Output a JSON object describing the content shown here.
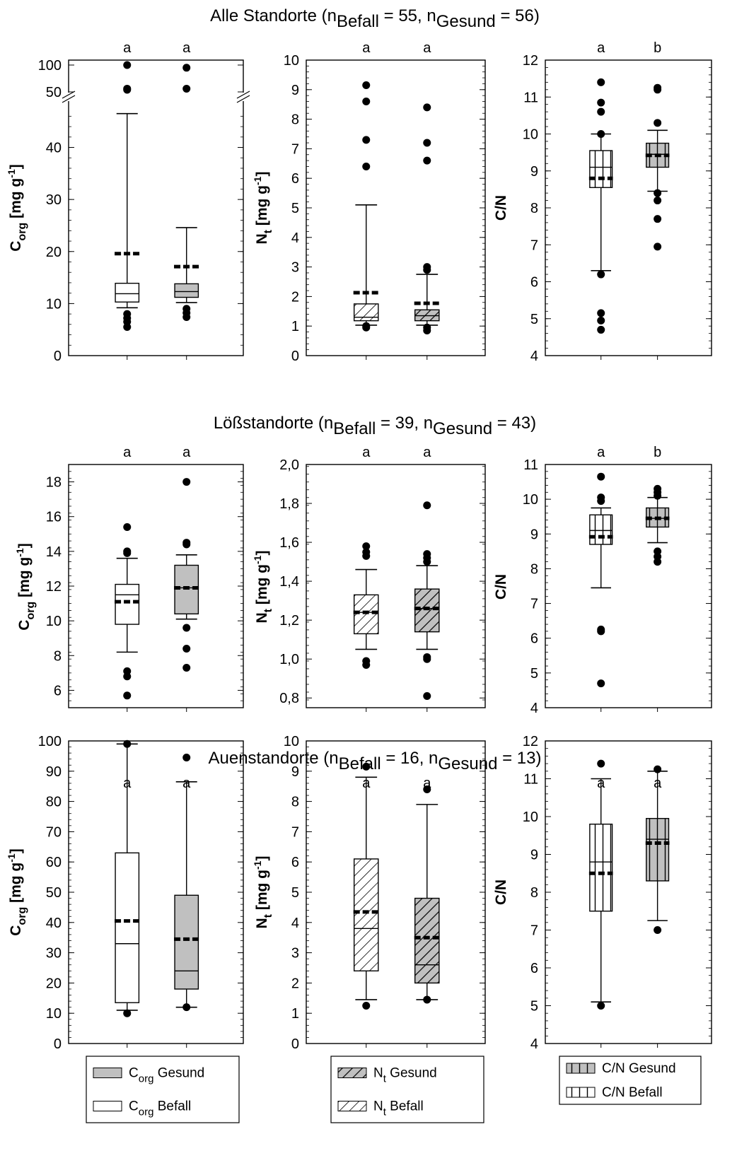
{
  "chart_data": [
    {
      "type": "box",
      "group": "Alle Standorte",
      "row_title": {
        "main": "Alle Standorte (n",
        "sub1": "Befall",
        "mid": " = 55, n",
        "sub2": "Gesund",
        "end": " = 56)"
      },
      "ylabel": {
        "main": "C",
        "sub": "org",
        "unit": " [mg g",
        "sup": "-1",
        "close": "]"
      },
      "ylim": [
        0,
        100
      ],
      "axis_break": [
        47,
        48
      ],
      "ticks": [
        "0",
        "10",
        "20",
        "30",
        "40",
        "50",
        "100"
      ],
      "tick_values": [
        0,
        10,
        20,
        30,
        40,
        50,
        100
      ],
      "fill_pattern": "solid-gray",
      "letters": [
        "a",
        "a"
      ],
      "boxes": [
        {
          "name": "Befall",
          "q1": 10.3,
          "median": 11.9,
          "q3": 13.9,
          "whisker_low": 9.2,
          "whisker_high": 46.5,
          "mean": 19.6,
          "outliers": [
            5.5,
            6.5,
            7.2,
            8.0,
            54,
            56,
            100
          ]
        },
        {
          "name": "Gesund",
          "q1": 11.2,
          "median": 12.3,
          "q3": 13.8,
          "whisker_low": 10.2,
          "whisker_high": 24.6,
          "mean": 17.1,
          "outliers": [
            7.4,
            8.2,
            9.0,
            56,
            95
          ]
        }
      ]
    },
    {
      "type": "box",
      "group": "Alle Standorte",
      "ylabel": {
        "main": "N",
        "sub": "t",
        "unit": " [mg g",
        "sup": "-1",
        "close": "]"
      },
      "ylim": [
        0,
        10
      ],
      "ticks": [
        "0",
        "1",
        "2",
        "3",
        "4",
        "5",
        "6",
        "7",
        "8",
        "9",
        "10"
      ],
      "tick_values": [
        0,
        1,
        2,
        3,
        4,
        5,
        6,
        7,
        8,
        9,
        10
      ],
      "fill_pattern": "diagonal",
      "letters": [
        "a",
        "a"
      ],
      "boxes": [
        {
          "name": "Befall",
          "q1": 1.18,
          "median": 1.3,
          "q3": 1.75,
          "whisker_low": 1.03,
          "whisker_high": 5.1,
          "mean": 2.13,
          "outliers": [
            0.95,
            1.0,
            6.4,
            7.3,
            8.6,
            9.15
          ]
        },
        {
          "name": "Gesund",
          "q1": 1.18,
          "median": 1.35,
          "q3": 1.55,
          "whisker_low": 1.03,
          "whisker_high": 2.75,
          "mean": 1.77,
          "outliers": [
            0.85,
            0.95,
            2.9,
            3.0,
            6.6,
            7.2,
            8.4
          ]
        }
      ]
    },
    {
      "type": "box",
      "group": "Alle Standorte",
      "ylabel": {
        "main": "C/N",
        "sub": "",
        "unit": "",
        "sup": "",
        "close": ""
      },
      "ylim": [
        4,
        12
      ],
      "ticks": [
        "4",
        "5",
        "6",
        "7",
        "8",
        "9",
        "10",
        "11",
        "12"
      ],
      "tick_values": [
        4,
        5,
        6,
        7,
        8,
        9,
        10,
        11,
        12
      ],
      "fill_pattern": "vertical",
      "letters": [
        "a",
        "b"
      ],
      "boxes": [
        {
          "name": "Befall",
          "q1": 8.55,
          "median": 9.1,
          "q3": 9.55,
          "whisker_low": 6.3,
          "whisker_high": 10.0,
          "mean": 8.8,
          "outliers": [
            4.7,
            4.95,
            5.15,
            6.2,
            10.0,
            10.6,
            10.85,
            11.4
          ]
        },
        {
          "name": "Gesund",
          "q1": 9.1,
          "median": 9.45,
          "q3": 9.75,
          "whisker_low": 8.45,
          "whisker_high": 10.1,
          "mean": 9.42,
          "outliers": [
            6.95,
            7.7,
            8.2,
            8.4,
            10.3,
            11.2,
            11.25
          ]
        }
      ]
    },
    {
      "type": "box",
      "group": "Lößstandorte",
      "row_title": {
        "main": "Lößstandorte (n",
        "sub1": "Befall",
        "mid": " = 39, n",
        "sub2": "Gesund",
        "end": " = 43)"
      },
      "ylabel": {
        "main": "C",
        "sub": "org",
        "unit": " [mg g",
        "sup": "-1",
        "close": "]"
      },
      "ylim": [
        5,
        19
      ],
      "ticks": [
        "6",
        "8",
        "10",
        "12",
        "14",
        "16",
        "18"
      ],
      "tick_values": [
        6,
        8,
        10,
        12,
        14,
        16,
        18
      ],
      "fill_pattern": "solid-gray",
      "letters": [
        "a",
        "a"
      ],
      "boxes": [
        {
          "name": "Befall",
          "q1": 9.8,
          "median": 11.5,
          "q3": 12.1,
          "whisker_low": 8.2,
          "whisker_high": 13.6,
          "mean": 11.1,
          "outliers": [
            5.7,
            6.8,
            7.1,
            13.9,
            14.0,
            15.4
          ]
        },
        {
          "name": "Gesund",
          "q1": 10.4,
          "median": 11.9,
          "q3": 13.2,
          "whisker_low": 10.1,
          "whisker_high": 13.8,
          "mean": 11.9,
          "outliers": [
            7.3,
            8.4,
            9.6,
            14.4,
            14.5,
            18.0
          ]
        }
      ]
    },
    {
      "type": "box",
      "group": "Lößstandorte",
      "ylabel": {
        "main": "N",
        "sub": "t",
        "unit": " [mg g",
        "sup": "-1",
        "close": "]"
      },
      "ylim": [
        0.75,
        2.0
      ],
      "ticks": [
        "0,8",
        "1,0",
        "1,2",
        "1,4",
        "1,6",
        "1,8",
        "2,0"
      ],
      "tick_values": [
        0.8,
        1.0,
        1.2,
        1.4,
        1.6,
        1.8,
        2.0
      ],
      "fill_pattern": "diagonal",
      "letters": [
        "a",
        "a"
      ],
      "boxes": [
        {
          "name": "Befall",
          "q1": 1.13,
          "median": 1.24,
          "q3": 1.33,
          "whisker_low": 1.05,
          "whisker_high": 1.46,
          "mean": 1.24,
          "outliers": [
            0.97,
            0.99,
            1.53,
            1.55,
            1.58
          ]
        },
        {
          "name": "Gesund",
          "q1": 1.14,
          "median": 1.26,
          "q3": 1.36,
          "whisker_low": 1.05,
          "whisker_high": 1.48,
          "mean": 1.26,
          "outliers": [
            0.81,
            1.0,
            1.01,
            1.5,
            1.52,
            1.54,
            1.79
          ]
        }
      ]
    },
    {
      "type": "box",
      "group": "Lößstandorte",
      "ylabel": {
        "main": "C/N",
        "sub": "",
        "unit": "",
        "sup": "",
        "close": ""
      },
      "ylim": [
        4,
        11
      ],
      "ticks": [
        "4",
        "5",
        "6",
        "7",
        "8",
        "9",
        "10",
        "11"
      ],
      "tick_values": [
        4,
        5,
        6,
        7,
        8,
        9,
        10,
        11
      ],
      "fill_pattern": "vertical",
      "letters": [
        "a",
        "b"
      ],
      "boxes": [
        {
          "name": "Befall",
          "q1": 8.7,
          "median": 9.1,
          "q3": 9.55,
          "whisker_low": 7.45,
          "whisker_high": 9.75,
          "mean": 8.92,
          "outliers": [
            4.7,
            6.2,
            6.25,
            9.95,
            10.05,
            10.65
          ]
        },
        {
          "name": "Gesund",
          "q1": 9.2,
          "median": 9.45,
          "q3": 9.75,
          "whisker_low": 8.75,
          "whisker_high": 10.05,
          "mean": 9.45,
          "outliers": [
            8.2,
            8.35,
            8.5,
            10.1,
            10.2,
            10.3
          ]
        }
      ]
    },
    {
      "type": "box",
      "group": "Auenstandorte",
      "row_title": {
        "main": "Auenstandorte (n",
        "sub1": "Befall",
        "mid": " = 16, n",
        "sub2": "Gesund",
        "end": " = 13)"
      },
      "ylabel": {
        "main": "C",
        "sub": "org",
        "unit": " [mg g",
        "sup": "-1",
        "close": "]"
      },
      "ylim": [
        0,
        100
      ],
      "ticks": [
        "0",
        "10",
        "20",
        "30",
        "40",
        "50",
        "60",
        "70",
        "80",
        "90",
        "100"
      ],
      "tick_values": [
        0,
        10,
        20,
        30,
        40,
        50,
        60,
        70,
        80,
        90,
        100
      ],
      "fill_pattern": "solid-gray",
      "letters": [
        "a",
        "a"
      ],
      "boxes": [
        {
          "name": "Befall",
          "q1": 13.5,
          "median": 33,
          "q3": 63,
          "whisker_low": 11,
          "whisker_high": 99,
          "mean": 40.5,
          "outliers": [
            10,
            99
          ]
        },
        {
          "name": "Gesund",
          "q1": 18,
          "median": 24,
          "q3": 49,
          "whisker_low": 12,
          "whisker_high": 86.5,
          "mean": 34.5,
          "outliers": [
            12,
            94.5
          ]
        }
      ]
    },
    {
      "type": "box",
      "group": "Auenstandorte",
      "ylabel": {
        "main": "N",
        "sub": "t",
        "unit": " [mg g",
        "sup": "-1",
        "close": "]"
      },
      "ylim": [
        0,
        10
      ],
      "ticks": [
        "0",
        "1",
        "2",
        "3",
        "4",
        "5",
        "6",
        "7",
        "8",
        "9",
        "10"
      ],
      "tick_values": [
        0,
        1,
        2,
        3,
        4,
        5,
        6,
        7,
        8,
        9,
        10
      ],
      "fill_pattern": "diagonal",
      "letters": [
        "a",
        "a"
      ],
      "boxes": [
        {
          "name": "Befall",
          "q1": 2.4,
          "median": 3.8,
          "q3": 6.1,
          "whisker_low": 1.45,
          "whisker_high": 8.8,
          "mean": 4.35,
          "outliers": [
            1.25,
            9.15
          ]
        },
        {
          "name": "Gesund",
          "q1": 2.0,
          "median": 2.6,
          "q3": 4.8,
          "whisker_low": 1.45,
          "whisker_high": 7.9,
          "mean": 3.5,
          "outliers": [
            1.45,
            8.4
          ]
        }
      ]
    },
    {
      "type": "box",
      "group": "Auenstandorte",
      "ylabel": {
        "main": "C/N",
        "sub": "",
        "unit": "",
        "sup": "",
        "close": ""
      },
      "ylim": [
        4,
        12
      ],
      "ticks": [
        "4",
        "5",
        "6",
        "7",
        "8",
        "9",
        "10",
        "11",
        "12"
      ],
      "tick_values": [
        4,
        5,
        6,
        7,
        8,
        9,
        10,
        11,
        12
      ],
      "fill_pattern": "vertical",
      "letters": [
        "a",
        "a"
      ],
      "boxes": [
        {
          "name": "Befall",
          "q1": 7.5,
          "median": 8.8,
          "q3": 9.8,
          "whisker_low": 5.1,
          "whisker_high": 11.0,
          "mean": 8.5,
          "outliers": [
            5.0,
            11.4
          ]
        },
        {
          "name": "Gesund",
          "q1": 8.3,
          "median": 9.4,
          "q3": 9.95,
          "whisker_low": 7.25,
          "whisker_high": 11.2,
          "mean": 9.3,
          "outliers": [
            7.0,
            11.25
          ]
        }
      ]
    }
  ],
  "legends": [
    {
      "items": [
        {
          "main": "C",
          "sub": "org",
          "rest": " Gesund",
          "fill": "solid-gray"
        },
        {
          "main": "C",
          "sub": "org",
          "rest": " Befall",
          "fill": "white"
        }
      ]
    },
    {
      "items": [
        {
          "main": "N",
          "sub": "t",
          "rest": " Gesund",
          "fill": "diagonal"
        },
        {
          "main": "N",
          "sub": "t",
          "rest": " Befall",
          "fill": "diagonal-white"
        }
      ]
    },
    {
      "items": [
        {
          "main": "C/N",
          "sub": "",
          "rest": " Gesund",
          "fill": "vertical"
        },
        {
          "main": "C/N",
          "sub": "",
          "rest": " Befall",
          "fill": "vertical-white"
        }
      ]
    }
  ],
  "colors": {
    "gesund_fill": "#c0c0c0",
    "befall_fill": "#ffffff",
    "stroke": "#000000"
  }
}
